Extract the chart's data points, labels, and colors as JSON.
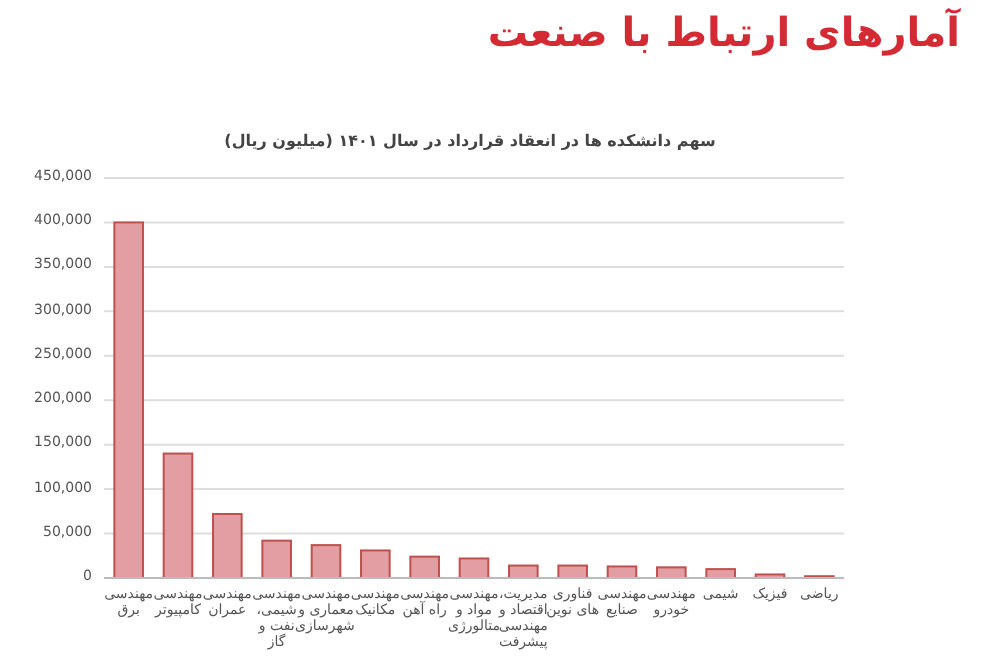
{
  "chart_data": {
    "type": "bar",
    "title": "آمارهای ارتباط با صنعت",
    "subtitle": "سهم دانشکده ها در انعقاد قرارداد در سال ۱۴۰۱ (میلیون ریال)",
    "categories": [
      "مهندسی برق",
      "مهندسی کامپیوتر",
      "مهندسی عمران",
      "مهندسی شیمی، نفت و گاز",
      "مهندسی معماری و شهرسازی",
      "مهندسی مکانیک",
      "مهندسی راه آهن",
      "مهندسی مواد و متالورژی",
      "مدیریت، اقتصاد و مهندسی پیشرفت",
      "فناوری های نوین",
      "مهندسی صنایع",
      "مهندسی خودرو",
      "شیمی",
      "فیزیک",
      "ریاضی"
    ],
    "values": [
      400000,
      140000,
      72000,
      42000,
      37000,
      31000,
      24000,
      22000,
      14000,
      14000,
      13000,
      12000,
      10000,
      4000,
      2000
    ],
    "color": "#e39ea3",
    "ylim": [
      0,
      450000
    ],
    "yticks": [
      0,
      {
        "value": 50000,
        "label": "50,000"
      },
      {
        "value": 100000,
        "label": "100,000"
      },
      {
        "value": 150000,
        "label": "150,000"
      },
      {
        "value": 200000,
        "label": "200,000"
      },
      {
        "value": 250000,
        "label": "250,000"
      },
      {
        "value": 300000,
        "label": "300,000"
      },
      {
        "value": 350000,
        "label": "350,000"
      },
      {
        "value": 400000,
        "label": "400,000"
      },
      {
        "value": 450000,
        "label": "450,000"
      }
    ],
    "grid": "y"
  }
}
